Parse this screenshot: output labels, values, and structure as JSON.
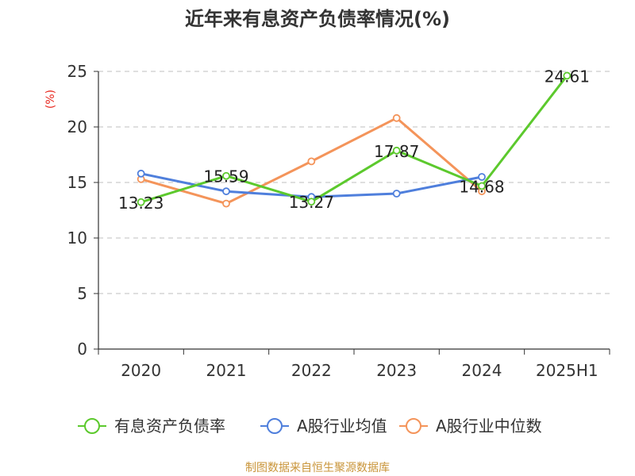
{
  "chart_data": {
    "type": "line",
    "title": "近年来有息资产负债率情况(%)",
    "unit_label": "(%)",
    "categories": [
      "2020",
      "2021",
      "2022",
      "2023",
      "2024",
      "2025H1"
    ],
    "ylim": [
      0,
      25
    ],
    "yticks": [
      0,
      5,
      10,
      15,
      20,
      25
    ],
    "grid": true,
    "legend_position": "bottom",
    "series": [
      {
        "name": "有息资产负债率",
        "color": "#5cc92d",
        "values": [
          13.23,
          15.59,
          13.27,
          17.87,
          14.68,
          24.61
        ],
        "labels": [
          "13.23",
          "15.59",
          "13.27",
          "17.87",
          "14.68",
          "24.61"
        ]
      },
      {
        "name": "A股行业均值",
        "color": "#4f7fdc",
        "values": [
          15.8,
          14.2,
          13.7,
          14.0,
          15.5,
          null
        ]
      },
      {
        "name": "A股行业中位数",
        "color": "#f4945a",
        "values": [
          15.3,
          13.1,
          16.9,
          20.8,
          14.2,
          null
        ]
      }
    ],
    "source": "制图数据来自恒生聚源数据库"
  }
}
